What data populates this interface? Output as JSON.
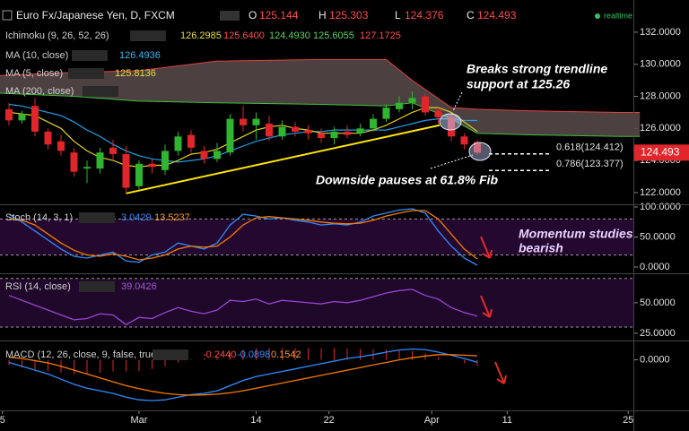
{
  "header": {
    "symbol": "Euro Fx/Japanese Yen, D, FXCM",
    "o_label": "O",
    "o": "125.144",
    "h_label": "H",
    "h": "125.303",
    "l_label": "L",
    "l": "124.376",
    "c_label": "C",
    "c": "124.493",
    "status": "realtime"
  },
  "chart_data": [
    {
      "type": "candlestick",
      "xticks": [
        {
          "value": -0.5,
          "label": "5"
        },
        {
          "value": 10,
          "label": "Mar"
        },
        {
          "value": 19,
          "label": "14"
        },
        {
          "value": 24.6,
          "label": "22"
        },
        {
          "value": 32.5,
          "label": "Apr"
        },
        {
          "value": 38.3,
          "label": "11"
        },
        {
          "value": 47.6,
          "label": "25"
        }
      ],
      "open": [
        127.2,
        126.5,
        127.4,
        125.8,
        125.2,
        124.5,
        123.5,
        123.5,
        124.8,
        124.4,
        122.4,
        123.8,
        123.4,
        124.6,
        125.6,
        124.6,
        124.1,
        124.5,
        126.6,
        126.2,
        126.3,
        125.5,
        126.1,
        125.9,
        125.7,
        125.4,
        125.8,
        125.7,
        126.0,
        126.6,
        127.2,
        127.6,
        128.0,
        127.1,
        126.7,
        125.5,
        125.144
      ],
      "high": [
        127.6,
        127.1,
        127.9,
        126.0,
        125.6,
        124.8,
        124.0,
        124.8,
        125.3,
        124.9,
        124.0,
        124.1,
        125.0,
        125.8,
        125.9,
        124.9,
        125.1,
        126.9,
        127.4,
        127.0,
        126.8,
        126.5,
        126.4,
        126.2,
        126.0,
        126.1,
        126.2,
        126.3,
        126.9,
        127.5,
        128.0,
        128.3,
        128.2,
        127.3,
        126.9,
        125.7,
        125.303
      ],
      "low": [
        126.2,
        126.3,
        125.5,
        124.7,
        124.3,
        123.0,
        122.6,
        123.2,
        124.0,
        122.0,
        122.2,
        123.2,
        123.1,
        124.3,
        124.5,
        123.8,
        123.9,
        124.3,
        125.8,
        125.3,
        125.2,
        125.3,
        125.5,
        125.3,
        125.1,
        125.0,
        125.4,
        125.5,
        125.8,
        126.4,
        127.0,
        127.2,
        126.8,
        126.3,
        125.2,
        124.7,
        124.376
      ],
      "close": [
        126.5,
        126.9,
        125.8,
        125.0,
        124.6,
        123.3,
        123.6,
        124.5,
        124.4,
        122.3,
        123.8,
        123.6,
        124.6,
        125.5,
        124.8,
        124.1,
        124.6,
        126.6,
        126.2,
        126.6,
        125.5,
        126.1,
        125.8,
        125.7,
        125.4,
        125.8,
        125.6,
        126.0,
        126.6,
        127.3,
        127.6,
        127.9,
        127.0,
        126.7,
        125.5,
        125.0,
        124.493
      ],
      "up_color": "#2fb52f",
      "down_color": "#e0262b",
      "ichimoku": {
        "name": "Ichimoku (9, 26, 52, 26)",
        "readings": [
          "126.2985",
          "125.6400",
          "124.4930",
          "125.6055",
          "127.1725"
        ],
        "x": [
          -0.7,
          5,
          10,
          16,
          24,
          29,
          31,
          34,
          36,
          40,
          47,
          48.5
        ],
        "upper": [
          129.3,
          129.5,
          129.6,
          130.2,
          130.3,
          130.3,
          129.0,
          127.3,
          127.2,
          127.1,
          127.0,
          127.0
        ],
        "lower": [
          128.2,
          128.0,
          127.7,
          127.6,
          127.5,
          127.4,
          127.6,
          126.6,
          125.7,
          125.6,
          125.5,
          125.5
        ],
        "color": "#5b4b4b",
        "upper_color": "#e04040",
        "lower_color": "#3cbf3c"
      },
      "series": [
        {
          "name": "MA (10, close)",
          "reading": "126.4936",
          "color": "#1ea0e6",
          "values": [
            127.5,
            127.4,
            127.2,
            127.0,
            126.8,
            126.4,
            125.9,
            125.5,
            125.0,
            124.6,
            124.3,
            124.1,
            124.0,
            123.9,
            124.0,
            124.1,
            124.3,
            124.6,
            124.9,
            125.2,
            125.4,
            125.6,
            125.7,
            125.8,
            125.8,
            125.9,
            125.9,
            125.9,
            125.9,
            125.9,
            126.1,
            126.3,
            126.5,
            126.6,
            126.6,
            126.5,
            126.4936
          ]
        },
        {
          "name": "MA (5, close)",
          "reading": "125.8136",
          "color": "#e6d21e",
          "values": [
            127.0,
            126.9,
            126.8,
            126.4,
            126.0,
            125.2,
            124.6,
            124.2,
            124.0,
            123.7,
            123.6,
            123.7,
            123.7,
            124.0,
            124.4,
            124.5,
            124.7,
            125.1,
            125.5,
            125.9,
            126.1,
            126.2,
            126.0,
            125.9,
            125.7,
            125.7,
            125.7,
            125.7,
            125.9,
            126.2,
            126.6,
            127.0,
            127.3,
            127.3,
            127.0,
            126.4,
            125.8136
          ]
        }
      ],
      "extra_legend": "MA (200, close)",
      "trendline": {
        "x": [
          9,
          33.1
        ],
        "y": [
          121.95,
          126.2
        ],
        "color": "#ffe600"
      },
      "fib": [
        {
          "label": "0.618(124.412)",
          "value": 124.412
        },
        {
          "label": "0.786(123.377)",
          "value": 123.377
        }
      ],
      "last_price": 124.493,
      "annotations": [
        {
          "lines": [
            "Breaks strong trendline",
            "support at 125.26"
          ]
        },
        {
          "lines": [
            "Downside pauses at 61.8% Fib"
          ]
        }
      ],
      "ylim": [
        121.27,
        133.45
      ],
      "yticks": [
        {
          "value": 122,
          "label": "122.0000"
        },
        {
          "value": 124,
          "label": "124.0000"
        },
        {
          "value": 126,
          "label": "126.0000"
        },
        {
          "value": 128,
          "label": "128.0000"
        },
        {
          "value": 130,
          "label": "130.0000"
        },
        {
          "value": 132,
          "label": "132.0000"
        }
      ]
    },
    {
      "type": "line",
      "name": "Stoch (14, 3, 1)",
      "readings": [
        "3.0429",
        "13.5237"
      ],
      "series": [
        {
          "color": "#2f8cff",
          "values": [
            88,
            75,
            60,
            45,
            30,
            18,
            15,
            20,
            25,
            10,
            8,
            20,
            25,
            40,
            35,
            30,
            40,
            70,
            88,
            85,
            80,
            82,
            78,
            75,
            70,
            72,
            70,
            75,
            85,
            90,
            95,
            97,
            90,
            60,
            35,
            15,
            3.0429
          ]
        },
        {
          "color": "#f57c00",
          "values": [
            80,
            78,
            70,
            55,
            40,
            28,
            20,
            18,
            22,
            18,
            12,
            15,
            20,
            30,
            35,
            33,
            35,
            50,
            70,
            82,
            84,
            82,
            80,
            78,
            75,
            73,
            72,
            73,
            78,
            85,
            90,
            94,
            94,
            80,
            55,
            30,
            13.5237
          ]
        }
      ],
      "bands": [
        20,
        80
      ],
      "band_color": "#24082f",
      "annotation": {
        "lines": [
          "Momentum studies",
          "bearish"
        ]
      },
      "ylim": [
        -10.4,
        104.5
      ],
      "yticks": [
        {
          "value": 0,
          "label": "0.0000"
        },
        {
          "value": 50,
          "label": "50.0000"
        },
        {
          "value": 100,
          "label": "100.0000"
        }
      ]
    },
    {
      "type": "line",
      "name": "RSI (14, close)",
      "readings": [
        "39.0426"
      ],
      "series": [
        {
          "color": "#9c44d6",
          "values": [
            56,
            52,
            48,
            44,
            40,
            36,
            37,
            41,
            40,
            32,
            38,
            37,
            42,
            46,
            43,
            41,
            44,
            52,
            51,
            53,
            49,
            52,
            51,
            50,
            49,
            51,
            50,
            52,
            55,
            58,
            60,
            61,
            56,
            53,
            46,
            42,
            39.0426
          ]
        }
      ],
      "bands": [
        30,
        70
      ],
      "band_color": "#1f0829",
      "ylim": [
        19,
        74.2
      ],
      "yticks": [
        {
          "value": 25,
          "label": "25.0000"
        },
        {
          "value": 50,
          "label": "50.0000"
        }
      ]
    },
    {
      "type": "macd",
      "name": "MACD (12, 26, close, 9, false, true)",
      "readings": [
        "-0.2440",
        "-0.0898",
        "0.1542"
      ],
      "histogram": {
        "color": "#e0262b",
        "values": [
          -0.2,
          -0.3,
          -0.37,
          -0.43,
          -0.5,
          -0.55,
          -0.55,
          -0.5,
          -0.45,
          -0.45,
          -0.43,
          -0.36,
          -0.25,
          -0.1,
          0.02,
          0.06,
          0.13,
          0.28,
          0.4,
          0.45,
          0.45,
          0.45,
          0.45,
          0.45,
          0.45,
          0.45,
          0.45,
          0.42,
          0.4,
          0.4,
          0.38,
          0.34,
          0.25,
          0.1,
          -0.02,
          -0.13,
          -0.244
        ]
      },
      "series": [
        {
          "color": "#2f8cff",
          "values": [
            -0.1,
            -0.25,
            -0.4,
            -0.55,
            -0.75,
            -0.95,
            -1.1,
            -1.2,
            -1.3,
            -1.45,
            -1.55,
            -1.58,
            -1.55,
            -1.45,
            -1.35,
            -1.3,
            -1.2,
            -1.0,
            -0.8,
            -0.65,
            -0.55,
            -0.45,
            -0.35,
            -0.25,
            -0.15,
            -0.05,
            0.05,
            0.12,
            0.2,
            0.3,
            0.38,
            0.42,
            0.4,
            0.3,
            0.18,
            0.05,
            -0.0898
          ]
        },
        {
          "color": "#f57c00",
          "values": [
            0.1,
            0.05,
            -0.03,
            -0.12,
            -0.25,
            -0.4,
            -0.55,
            -0.7,
            -0.85,
            -1.0,
            -1.12,
            -1.22,
            -1.3,
            -1.35,
            -1.37,
            -1.36,
            -1.33,
            -1.28,
            -1.2,
            -1.1,
            -1.0,
            -0.9,
            -0.8,
            -0.7,
            -0.6,
            -0.5,
            -0.4,
            -0.3,
            -0.2,
            -0.1,
            0.0,
            0.08,
            0.15,
            0.2,
            0.2,
            0.18,
            0.1542
          ]
        }
      ],
      "ylim": [
        -1.96,
        0.75
      ],
      "yticks": [
        {
          "value": 0,
          "label": "0.0000"
        }
      ]
    }
  ]
}
